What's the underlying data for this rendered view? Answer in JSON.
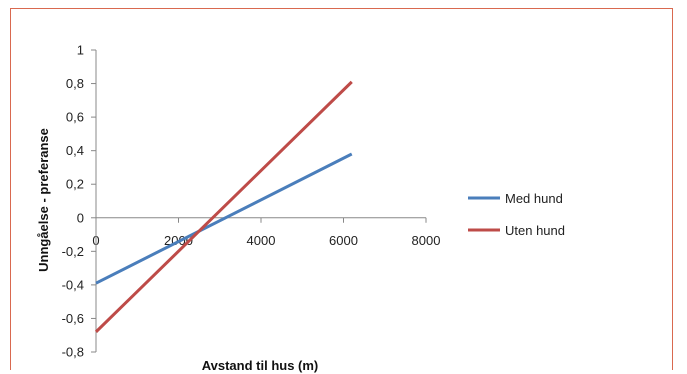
{
  "chart_data": {
    "type": "line",
    "xlabel": "Avstand til hus (m)",
    "ylabel": "Unngåelse - preferanse",
    "xlim": [
      0,
      8000
    ],
    "ylim": [
      -0.8,
      1.0
    ],
    "x_ticks": [
      0,
      2000,
      4000,
      6000,
      8000
    ],
    "x_tick_labels": [
      "0",
      "2000",
      "4000",
      "6000",
      "8000"
    ],
    "y_ticks": [
      -0.8,
      -0.6,
      -0.4,
      -0.2,
      0,
      0.2,
      0.4,
      0.6,
      0.8,
      1.0
    ],
    "y_tick_labels": [
      "-0,8",
      "-0,6",
      "-0,4",
      "-0,2",
      "0",
      "0,2",
      "0,4",
      "0,6",
      "0,8",
      "1"
    ],
    "grid": false,
    "legend_position": "right",
    "series": [
      {
        "name": "Med hund",
        "color": "#4a7ebb",
        "x": [
          0,
          6200
        ],
        "y": [
          -0.39,
          0.38
        ]
      },
      {
        "name": "Uten hund",
        "color": "#be4b48",
        "x": [
          0,
          6200
        ],
        "y": [
          -0.68,
          0.81
        ]
      }
    ]
  }
}
